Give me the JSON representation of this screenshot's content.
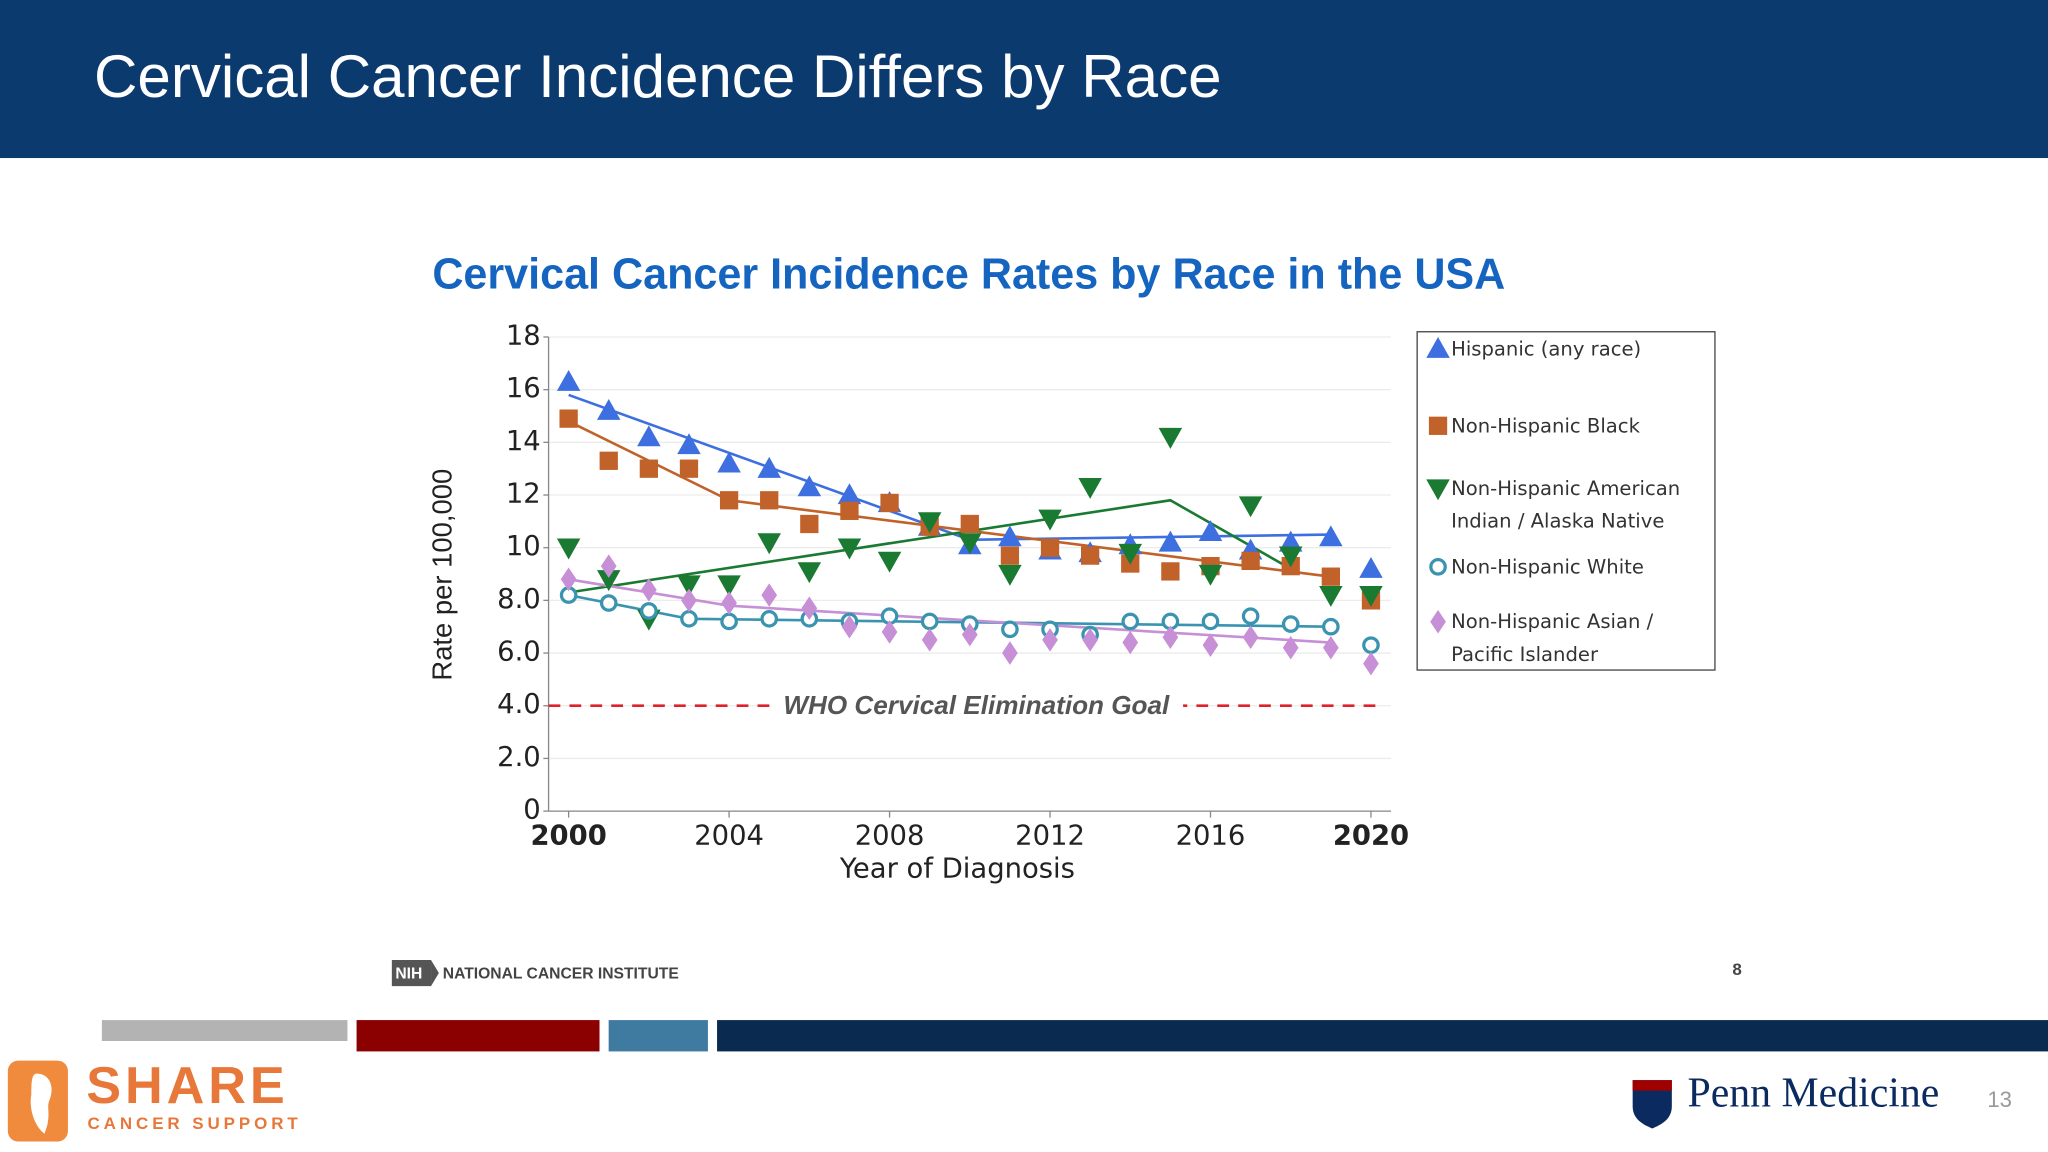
{
  "slide": {
    "title": "Cervical Cancer Incidence Differs by Race",
    "source": "NATIONAL CANCER INSTITUTE",
    "nih": "NIH",
    "source_page": "8",
    "share": "SHARE",
    "share_sub": "CANCER SUPPORT",
    "penn": "Penn Medicine",
    "page": "13"
  },
  "chart_data": {
    "type": "scatter",
    "title": "Cervical Cancer Incidence Rates by Race in the USA",
    "x_label": "Year of Diagnosis",
    "y_label": "Rate per 100,000",
    "x": [
      2000,
      2001,
      2002,
      2003,
      2004,
      2005,
      2006,
      2007,
      2008,
      2009,
      2010,
      2011,
      2012,
      2013,
      2014,
      2015,
      2016,
      2017,
      2018,
      2019,
      2020
    ],
    "xlim": [
      1999.5,
      2020.5
    ],
    "xticks": [
      2000,
      2004,
      2008,
      2012,
      2016,
      2020
    ],
    "ylim": [
      0,
      18
    ],
    "yticks": [
      0,
      {
        "value": 2,
        "label": "2.0"
      },
      {
        "value": 4,
        "label": "4.0"
      },
      {
        "value": 6,
        "label": "6.0"
      },
      {
        "value": 8,
        "label": "8.0"
      },
      10,
      12,
      14,
      16,
      18
    ],
    "grid": true,
    "reference_line": {
      "value": 4,
      "label": "WHO Cervical Elimination Goal",
      "color": "#e0202a"
    },
    "series": [
      {
        "name": "Hispanic (any race)",
        "color": "#3d6fe0",
        "marker": "triangle-up",
        "values": [
          16.3,
          15.2,
          14.2,
          13.9,
          13.2,
          13.0,
          12.3,
          12.0,
          11.7,
          10.8,
          10.1,
          10.4,
          9.9,
          9.8,
          10.1,
          10.2,
          10.6,
          9.9,
          10.2,
          10.4,
          9.2
        ],
        "trend": {
          "x": [
            2000,
            2010,
            2019
          ],
          "values": [
            15.8,
            10.3,
            10.5
          ]
        }
      },
      {
        "name": "Non-Hispanic Black",
        "color": "#c0622a",
        "marker": "square",
        "values": [
          14.9,
          13.3,
          13.0,
          13.0,
          11.8,
          11.8,
          10.9,
          11.4,
          11.7,
          10.8,
          10.9,
          9.7,
          10.0,
          9.7,
          9.4,
          9.1,
          9.3,
          9.5,
          9.3,
          8.9,
          8.0
        ],
        "trend": {
          "x": [
            2000,
            2004,
            2019
          ],
          "values": [
            14.8,
            11.8,
            8.9
          ]
        }
      },
      {
        "name": "Non-Hispanic American Indian / Alaska Native",
        "color": "#1a7a32",
        "marker": "triangle-down",
        "values": [
          10.0,
          8.8,
          7.3,
          8.6,
          8.6,
          10.2,
          9.1,
          10.0,
          9.5,
          11.0,
          10.2,
          9.0,
          11.1,
          12.3,
          9.8,
          14.2,
          9.0,
          11.6,
          9.7,
          8.2,
          8.2
        ],
        "trend": {
          "x": [
            2000,
            2015,
            2018
          ],
          "values": [
            8.3,
            11.8,
            9.2
          ]
        }
      },
      {
        "name": "Non-Hispanic White",
        "color": "#3a94b0",
        "marker": "circle-open",
        "values": [
          8.2,
          7.9,
          7.6,
          7.3,
          7.2,
          7.3,
          7.3,
          7.2,
          7.4,
          7.2,
          7.1,
          6.9,
          6.9,
          6.7,
          7.2,
          7.2,
          7.2,
          7.4,
          7.1,
          7.0,
          6.3
        ],
        "trend": {
          "x": [
            2000,
            2003,
            2019
          ],
          "values": [
            8.2,
            7.3,
            7.0
          ]
        }
      },
      {
        "name": "Non-Hispanic Asian / Pacific Islander",
        "color": "#c68fd6",
        "marker": "diamond",
        "values": [
          8.8,
          9.3,
          8.4,
          8.0,
          7.9,
          8.2,
          7.7,
          7.0,
          6.8,
          6.5,
          6.7,
          6.0,
          6.5,
          6.5,
          6.4,
          6.6,
          6.3,
          6.6,
          6.2,
          6.2,
          5.6
        ],
        "trend": {
          "x": [
            2000,
            2004,
            2019
          ],
          "values": [
            8.8,
            7.8,
            6.4
          ]
        }
      }
    ]
  }
}
